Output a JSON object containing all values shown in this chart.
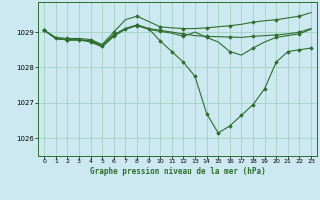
{
  "title": "Graphe pression niveau de la mer (hPa)",
  "background_color": "#cce8f0",
  "grid_color": "#aad4c8",
  "line_color": "#2d6e2d",
  "marker_color": "#2d6e2d",
  "ylim": [
    1025.5,
    1029.85
  ],
  "yticks": [
    1026,
    1027,
    1028,
    1029
  ],
  "xlim": [
    -0.5,
    23.5
  ],
  "xticks": [
    0,
    1,
    2,
    3,
    4,
    5,
    6,
    7,
    8,
    9,
    10,
    11,
    12,
    13,
    14,
    15,
    16,
    17,
    18,
    19,
    20,
    21,
    22,
    23
  ],
  "series": [
    [
      1029.05,
      1028.85,
      1028.82,
      1028.82,
      1028.79,
      1028.65,
      1029.0,
      1029.35,
      1029.45,
      1029.3,
      1029.15,
      1029.12,
      1029.1,
      1029.1,
      1029.12,
      1029.15,
      1029.18,
      1029.22,
      1029.28,
      1029.32,
      1029.35,
      1029.4,
      1029.45,
      1029.55
    ],
    [
      1029.05,
      1028.82,
      1028.78,
      1028.78,
      1028.75,
      1028.62,
      1028.92,
      1029.1,
      1029.2,
      1029.1,
      1029.05,
      1029.0,
      1028.95,
      1028.9,
      1028.88,
      1028.87,
      1028.86,
      1028.85,
      1028.88,
      1028.9,
      1028.92,
      1028.95,
      1029.0,
      1029.1
    ],
    [
      1029.05,
      1028.82,
      1028.78,
      1028.78,
      1028.75,
      1028.62,
      1028.92,
      1029.1,
      1029.2,
      1029.1,
      1028.75,
      1028.45,
      1028.15,
      1027.75,
      1026.7,
      1026.15,
      1026.35,
      1026.65,
      1026.95,
      1027.4,
      1028.15,
      1028.45,
      1028.5,
      1028.55
    ],
    [
      1029.05,
      1028.82,
      1028.78,
      1028.78,
      1028.72,
      1028.58,
      1028.88,
      1029.08,
      1029.18,
      1029.08,
      1029.02,
      1028.97,
      1028.88,
      1029.0,
      1028.85,
      1028.72,
      1028.45,
      1028.35,
      1028.55,
      1028.72,
      1028.85,
      1028.9,
      1028.95,
      1029.08
    ]
  ],
  "marker_series": [
    0,
    1,
    2,
    3
  ],
  "marker_every": [
    2,
    2,
    1,
    2
  ]
}
